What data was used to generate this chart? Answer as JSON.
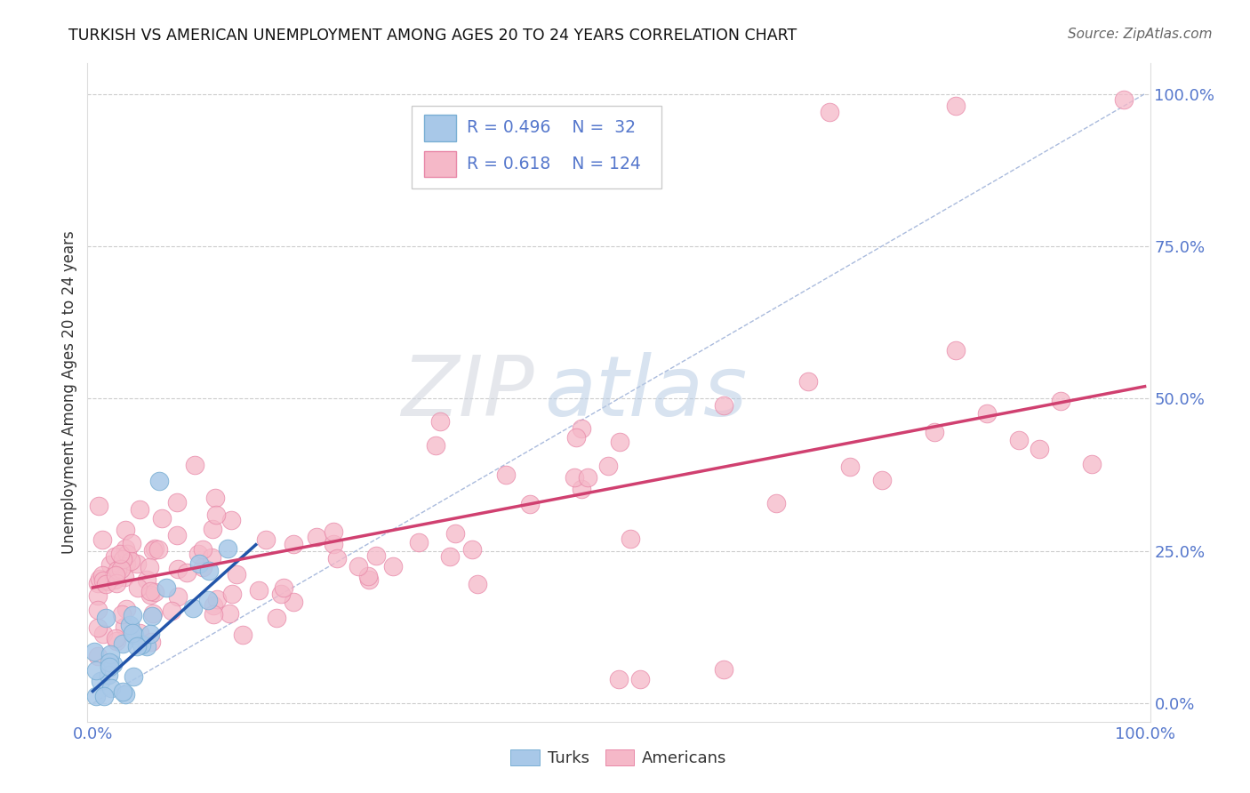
{
  "title": "TURKISH VS AMERICAN UNEMPLOYMENT AMONG AGES 20 TO 24 YEARS CORRELATION CHART",
  "source": "Source: ZipAtlas.com",
  "ylabel": "Unemployment Among Ages 20 to 24 years",
  "turks_color": "#a8c8e8",
  "turks_edgecolor": "#7aafd4",
  "americans_color": "#f5b8c8",
  "americans_edgecolor": "#e888a8",
  "regression_turks_color": "#2255aa",
  "regression_americans_color": "#d04070",
  "reference_line_color": "#aabbdd",
  "background_color": "#ffffff",
  "grid_color": "#cccccc",
  "axis_color": "#5577cc",
  "title_color": "#111111",
  "watermark_zip_color": "#d0d8e8",
  "watermark_atlas_color": "#b8d0e8"
}
